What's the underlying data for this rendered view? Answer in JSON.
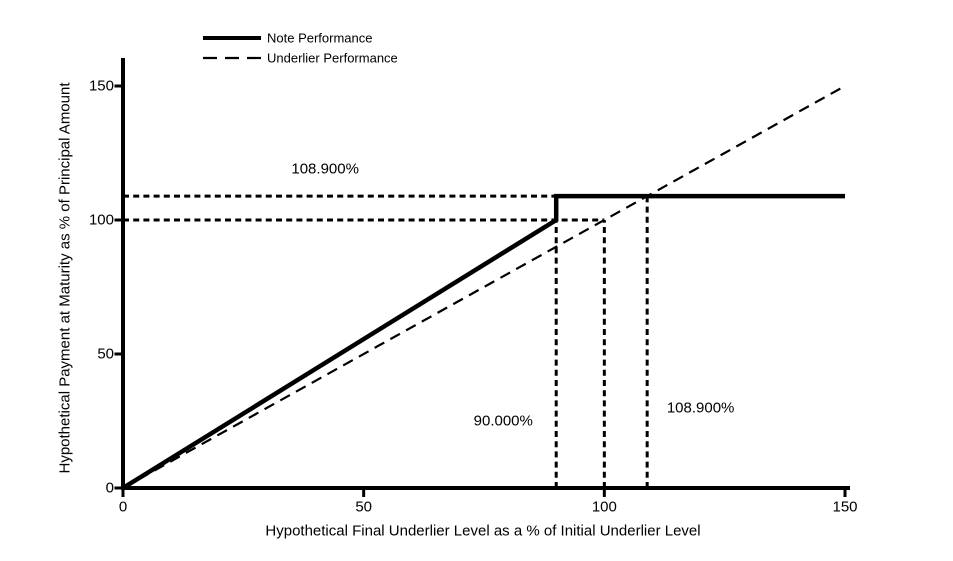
{
  "colors": {
    "foreground": "#000000",
    "background": "#ffffff"
  },
  "chart_data": {
    "type": "line",
    "title": "",
    "xlabel": "Hypothetical Final Underlier Level as a % of Initial Underlier Level",
    "ylabel": "Hypothetical Payment at Maturity as % of Principal Amount",
    "xlim": [
      0,
      150
    ],
    "ylim": [
      0,
      160
    ],
    "x_ticks": [
      0,
      50,
      100,
      150
    ],
    "y_ticks": [
      0,
      50,
      100,
      150
    ],
    "grid": false,
    "legend_position": "top-left",
    "series": [
      {
        "name": "Note Performance",
        "style": "solid",
        "points": [
          [
            0,
            0
          ],
          [
            90,
            100
          ],
          [
            90,
            108.9
          ],
          [
            150,
            108.9
          ]
        ]
      },
      {
        "name": "Underlier Performance",
        "style": "dashed",
        "points": [
          [
            0,
            0
          ],
          [
            150,
            150
          ]
        ]
      }
    ],
    "reference_lines": [
      {
        "orient": "h",
        "value": 108.9,
        "from": 0,
        "to": 90
      },
      {
        "orient": "h",
        "value": 100,
        "from": 0,
        "to": 100
      },
      {
        "orient": "v",
        "value": 90,
        "from": 0,
        "to": 100
      },
      {
        "orient": "v",
        "value": 100,
        "from": 0,
        "to": 100
      },
      {
        "orient": "v",
        "value": 108.9,
        "from": 0,
        "to": 108.9
      }
    ],
    "annotations": [
      {
        "text": "108.900%",
        "x": 42,
        "y": 119
      },
      {
        "text": "90.000%",
        "x": 79,
        "y": 25
      },
      {
        "text": "108.900%",
        "x": 120,
        "y": 30
      }
    ]
  }
}
